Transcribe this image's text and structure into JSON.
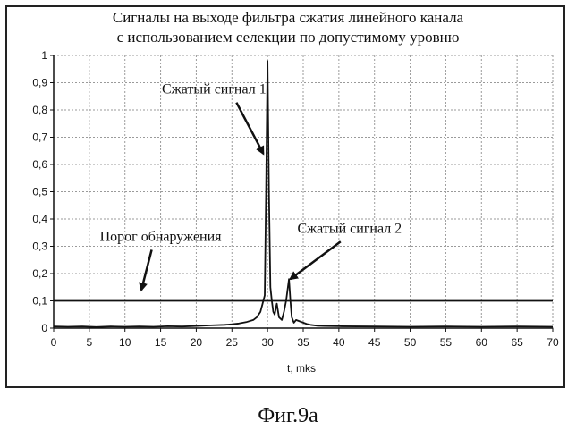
{
  "caption": "Фиг.9а",
  "chart_data": {
    "type": "line",
    "title": [
      "Сигналы на выходе фильтра сжатия линейного канала",
      "с использованием селекции по допустимому уровню"
    ],
    "xlabel": "t, mks",
    "ylabel": "",
    "xlim": [
      0,
      70
    ],
    "ylim": [
      0,
      1
    ],
    "x_ticks": [
      0,
      5,
      10,
      15,
      20,
      25,
      30,
      35,
      40,
      45,
      50,
      55,
      60,
      65,
      70
    ],
    "y_ticks": [
      0,
      0.1,
      0.2,
      0.3,
      0.4,
      0.5,
      0.6,
      0.7,
      0.8,
      0.9,
      1
    ],
    "y_tick_labels": [
      "0",
      "0,1",
      "0,2",
      "0,3",
      "0,4",
      "0,5",
      "0,6",
      "0,7",
      "0,8",
      "0,9",
      "1"
    ],
    "grid": true,
    "threshold": 0.1,
    "series": [
      {
        "x": [
          0,
          2,
          4,
          6,
          8,
          10,
          12,
          14,
          16,
          18,
          20,
          22,
          24,
          25,
          26,
          27,
          28,
          28.5,
          29,
          29.3,
          29.6,
          29.8,
          30,
          30.2,
          30.4,
          30.6,
          30.8,
          31,
          31.3,
          31.6,
          32,
          32.3,
          32.6,
          32.8,
          33,
          33.2,
          33.4,
          33.7,
          34,
          34.5,
          35,
          35.5,
          36,
          37,
          38,
          40,
          45,
          50,
          55,
          60,
          65,
          70
        ],
        "y": [
          0.006,
          0.005,
          0.006,
          0.004,
          0.006,
          0.005,
          0.006,
          0.005,
          0.007,
          0.006,
          0.008,
          0.01,
          0.012,
          0.014,
          0.017,
          0.022,
          0.03,
          0.04,
          0.06,
          0.09,
          0.12,
          0.5,
          0.98,
          0.5,
          0.15,
          0.1,
          0.06,
          0.05,
          0.09,
          0.04,
          0.03,
          0.06,
          0.1,
          0.14,
          0.18,
          0.1,
          0.04,
          0.02,
          0.03,
          0.025,
          0.02,
          0.015,
          0.012,
          0.009,
          0.008,
          0.007,
          0.006,
          0.005,
          0.006,
          0.005,
          0.006,
          0.005
        ]
      }
    ],
    "annotations": [
      {
        "text": "Сжатый сигнал 1",
        "x": 22.5,
        "y": 0.86,
        "target_x": 29.4,
        "target_y": 0.64
      },
      {
        "text": "Сжатый сигнал 2",
        "x": 41.5,
        "y": 0.35,
        "target_x": 33.2,
        "target_y": 0.18
      },
      {
        "text": "Порог обнаружения",
        "x": 15,
        "y": 0.32,
        "target_x": 12.3,
        "target_y": 0.14
      }
    ]
  }
}
